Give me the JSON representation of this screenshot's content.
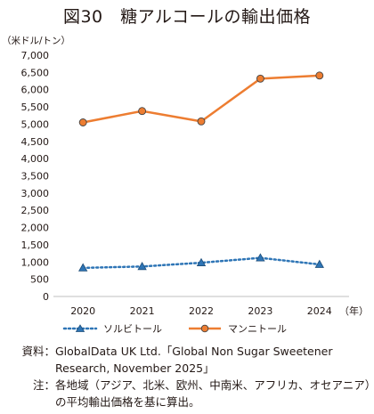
{
  "figure_title": "図30　糖アルコールの輸出価格",
  "unit_label": "（米ドル/トン）",
  "chart_data": {
    "type": "line",
    "categories": [
      "2020",
      "2021",
      "2022",
      "2023",
      "2024"
    ],
    "x_unit": "（年）",
    "ylabel": "（米ドル/トン）",
    "ylim": [
      0,
      7000
    ],
    "y_ticks": [
      "0",
      "500",
      "1,000",
      "1,500",
      "2,000",
      "2,500",
      "3,000",
      "3,500",
      "4,000",
      "4,500",
      "5,000",
      "5,500",
      "6,000",
      "6,500",
      "7,000"
    ],
    "grid": false,
    "legend_position": "bottom",
    "series": [
      {
        "name": "ソルビトール",
        "values": [
          830,
          870,
          980,
          1120,
          930
        ],
        "color": "#2e75b6",
        "line_style": "dotted",
        "marker": "triangle"
      },
      {
        "name": "マンニトール",
        "values": [
          5050,
          5380,
          5080,
          6320,
          6410
        ],
        "color": "#ed7d31",
        "line_style": "solid",
        "marker": "circle"
      }
    ]
  },
  "notes": {
    "source_label": "資料：",
    "source_lines": [
      "GlobalData UK Ltd.「Global Non Sugar Sweetener",
      "Research, November 2025」"
    ],
    "note_label": "注：",
    "note_lines": [
      "各地域（アジア、北米、欧州、中南米、アフリカ、オセアニア）",
      "の平均輸出価格を基に算出。"
    ]
  }
}
